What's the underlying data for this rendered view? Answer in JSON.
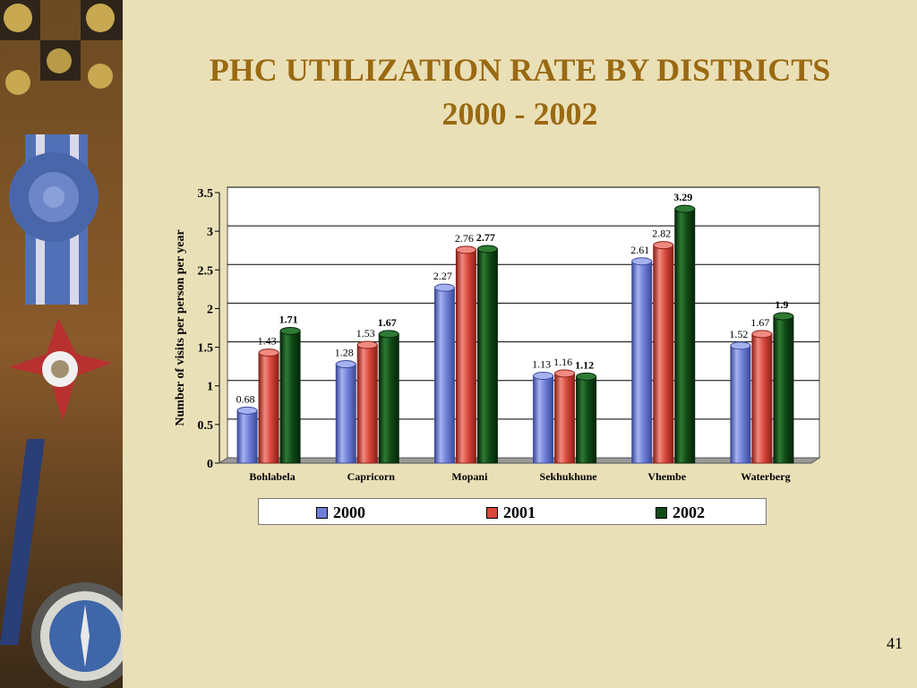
{
  "title_line1": "PHC UTILIZATION RATE BY DISTRICTS",
  "title_line2": "2000 - 2002",
  "page_number": "41",
  "colors": {
    "title": "#9A6A12",
    "background": "#EAE0B8",
    "series_2000": "#6F7FD8",
    "series_2001": "#D9473B",
    "series_2002": "#0F4A14"
  },
  "chart_data": {
    "type": "bar",
    "ylabel": "Number of visits per person per year",
    "xlabel": "",
    "ylim": [
      0,
      3.5
    ],
    "yticks": [
      "0",
      "0.5",
      "1",
      "1.5",
      "2",
      "2.5",
      "3",
      "3.5"
    ],
    "grid": true,
    "legend_position": "bottom",
    "categories": [
      "Bohlabela",
      "Capricorn",
      "Mopani",
      "Sekhukhune",
      "Vhembe",
      "Waterberg"
    ],
    "series": [
      {
        "name": "2000",
        "values": [
          0.68,
          1.28,
          2.27,
          1.13,
          2.61,
          1.52
        ],
        "labels": [
          "0.68",
          "1.28",
          "2.27",
          "1.13",
          "2.61",
          "1.52"
        ]
      },
      {
        "name": "2001",
        "values": [
          1.43,
          1.53,
          2.76,
          1.16,
          2.82,
          1.67
        ],
        "labels": [
          "1.43",
          "1.53",
          "2.76",
          "1.16",
          "2.82",
          "1.67"
        ]
      },
      {
        "name": "2002",
        "values": [
          1.71,
          1.67,
          2.77,
          1.12,
          3.29,
          1.9
        ],
        "labels": [
          "1.71",
          "1.67",
          "2.77",
          "1.12",
          "3.29",
          "1.9"
        ]
      }
    ]
  }
}
